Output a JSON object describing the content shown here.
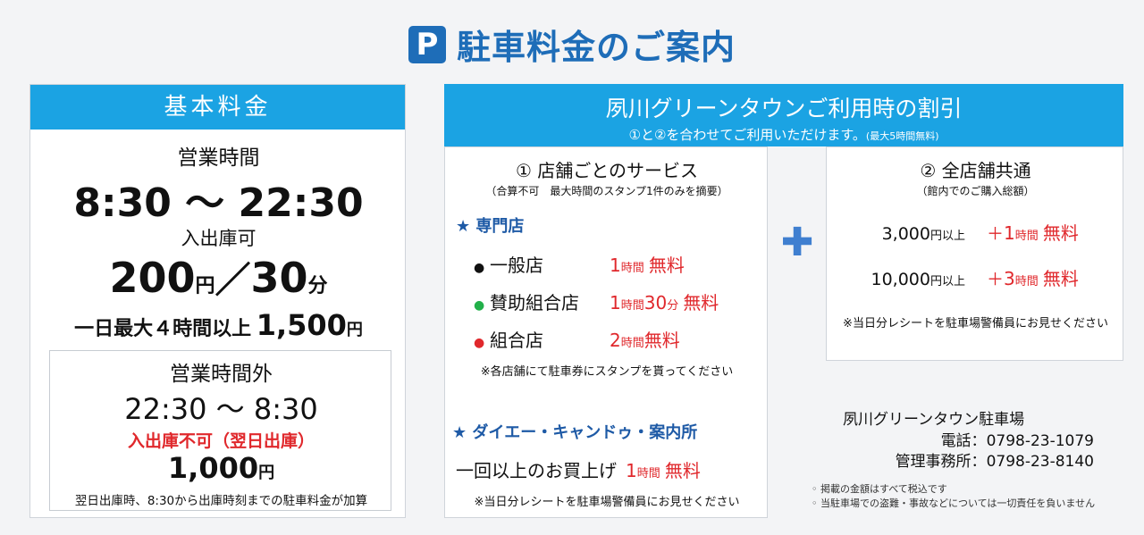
{
  "title": {
    "icon": "P",
    "text": "駐車料金のご案内"
  },
  "basic": {
    "header": "基本料金",
    "hours_label": "営業時間",
    "hours": "8:30 ～ 22:30",
    "in_out": "入出庫可",
    "rate_num": "200",
    "rate_yen": "円",
    "rate_sep": "／",
    "rate_min_num": "30",
    "rate_min_unit": "分",
    "daily_prefix": "一日最大４時間以上",
    "daily_num": "1,500",
    "daily_yen": "円",
    "after": {
      "label": "営業時間外",
      "hours": "22:30 ～ 8:30",
      "warning": "入出庫不可（翌日出庫）",
      "price_num": "1,000",
      "price_yen": "円",
      "note": "翌日出庫時、8:30から出庫時刻までの駐車料金が加算"
    }
  },
  "discount": {
    "header": "夙川グリーンタウンご利用時の割引",
    "sub_main": "①と②を合わせてご利用いただけます。",
    "sub_small": "(最大5時間無料)",
    "left": {
      "title": "① 店舗ごとのサービス",
      "note": "（合算不可　最大時間のスタンプ1件のみを摘要）",
      "specialty": "★ 専門店",
      "stores": [
        {
          "dot_color": "#111111",
          "name": "一般店",
          "num1": "1",
          "unit1": "時間",
          "num2": "",
          "unit2": "",
          "free": "無料",
          "gap": " "
        },
        {
          "dot_color": "#22b04a",
          "name": "賛助組合店",
          "num1": "1",
          "unit1": "時間",
          "num2": "30",
          "unit2": "分",
          "free": "無料",
          "gap": " "
        },
        {
          "dot_color": "#e0282c",
          "name": "組合店",
          "num1": "2",
          "unit1": "時間",
          "num2": "",
          "unit2": "",
          "free": "無料",
          "gap": ""
        }
      ],
      "dot_glyph": "●",
      "stamp_note": "※各店舗にて駐車券にスタンプを貰ってください",
      "daiei": "★ ダイエー・キャンドゥ・案内所",
      "purchase": "一回以上のお買上げ",
      "purchase_num": "1",
      "purchase_unit": "時間",
      "purchase_free": "無料",
      "receipt_note": "※当日分レシートを駐車場警備員にお見せください"
    },
    "plus": "✚",
    "right": {
      "title": "② 全店舗共通",
      "note": "（館内でのご購入総額）",
      "tiers": [
        {
          "amount": "3,000",
          "yen_above": "円以上",
          "plus": "＋",
          "num": "1",
          "unit": "時間",
          "free": "無料"
        },
        {
          "amount": "10,000",
          "yen_above": "円以上",
          "plus": "＋",
          "num": "3",
          "unit": "時間",
          "free": "無料"
        }
      ],
      "receipt_note": "※当日分レシートを駐車場警備員にお見せください"
    }
  },
  "contact": {
    "name": "夙川グリーンタウン駐車場",
    "phone_label": "電話：",
    "phone": "0798-23-1079",
    "office_label": "管理事務所：",
    "office": "0798-23-8140"
  },
  "footnotes": [
    "◦ 掲載の金額はすべて税込です",
    "◦ 当駐車場での盗難・事故などについては一切責任を負いません"
  ]
}
